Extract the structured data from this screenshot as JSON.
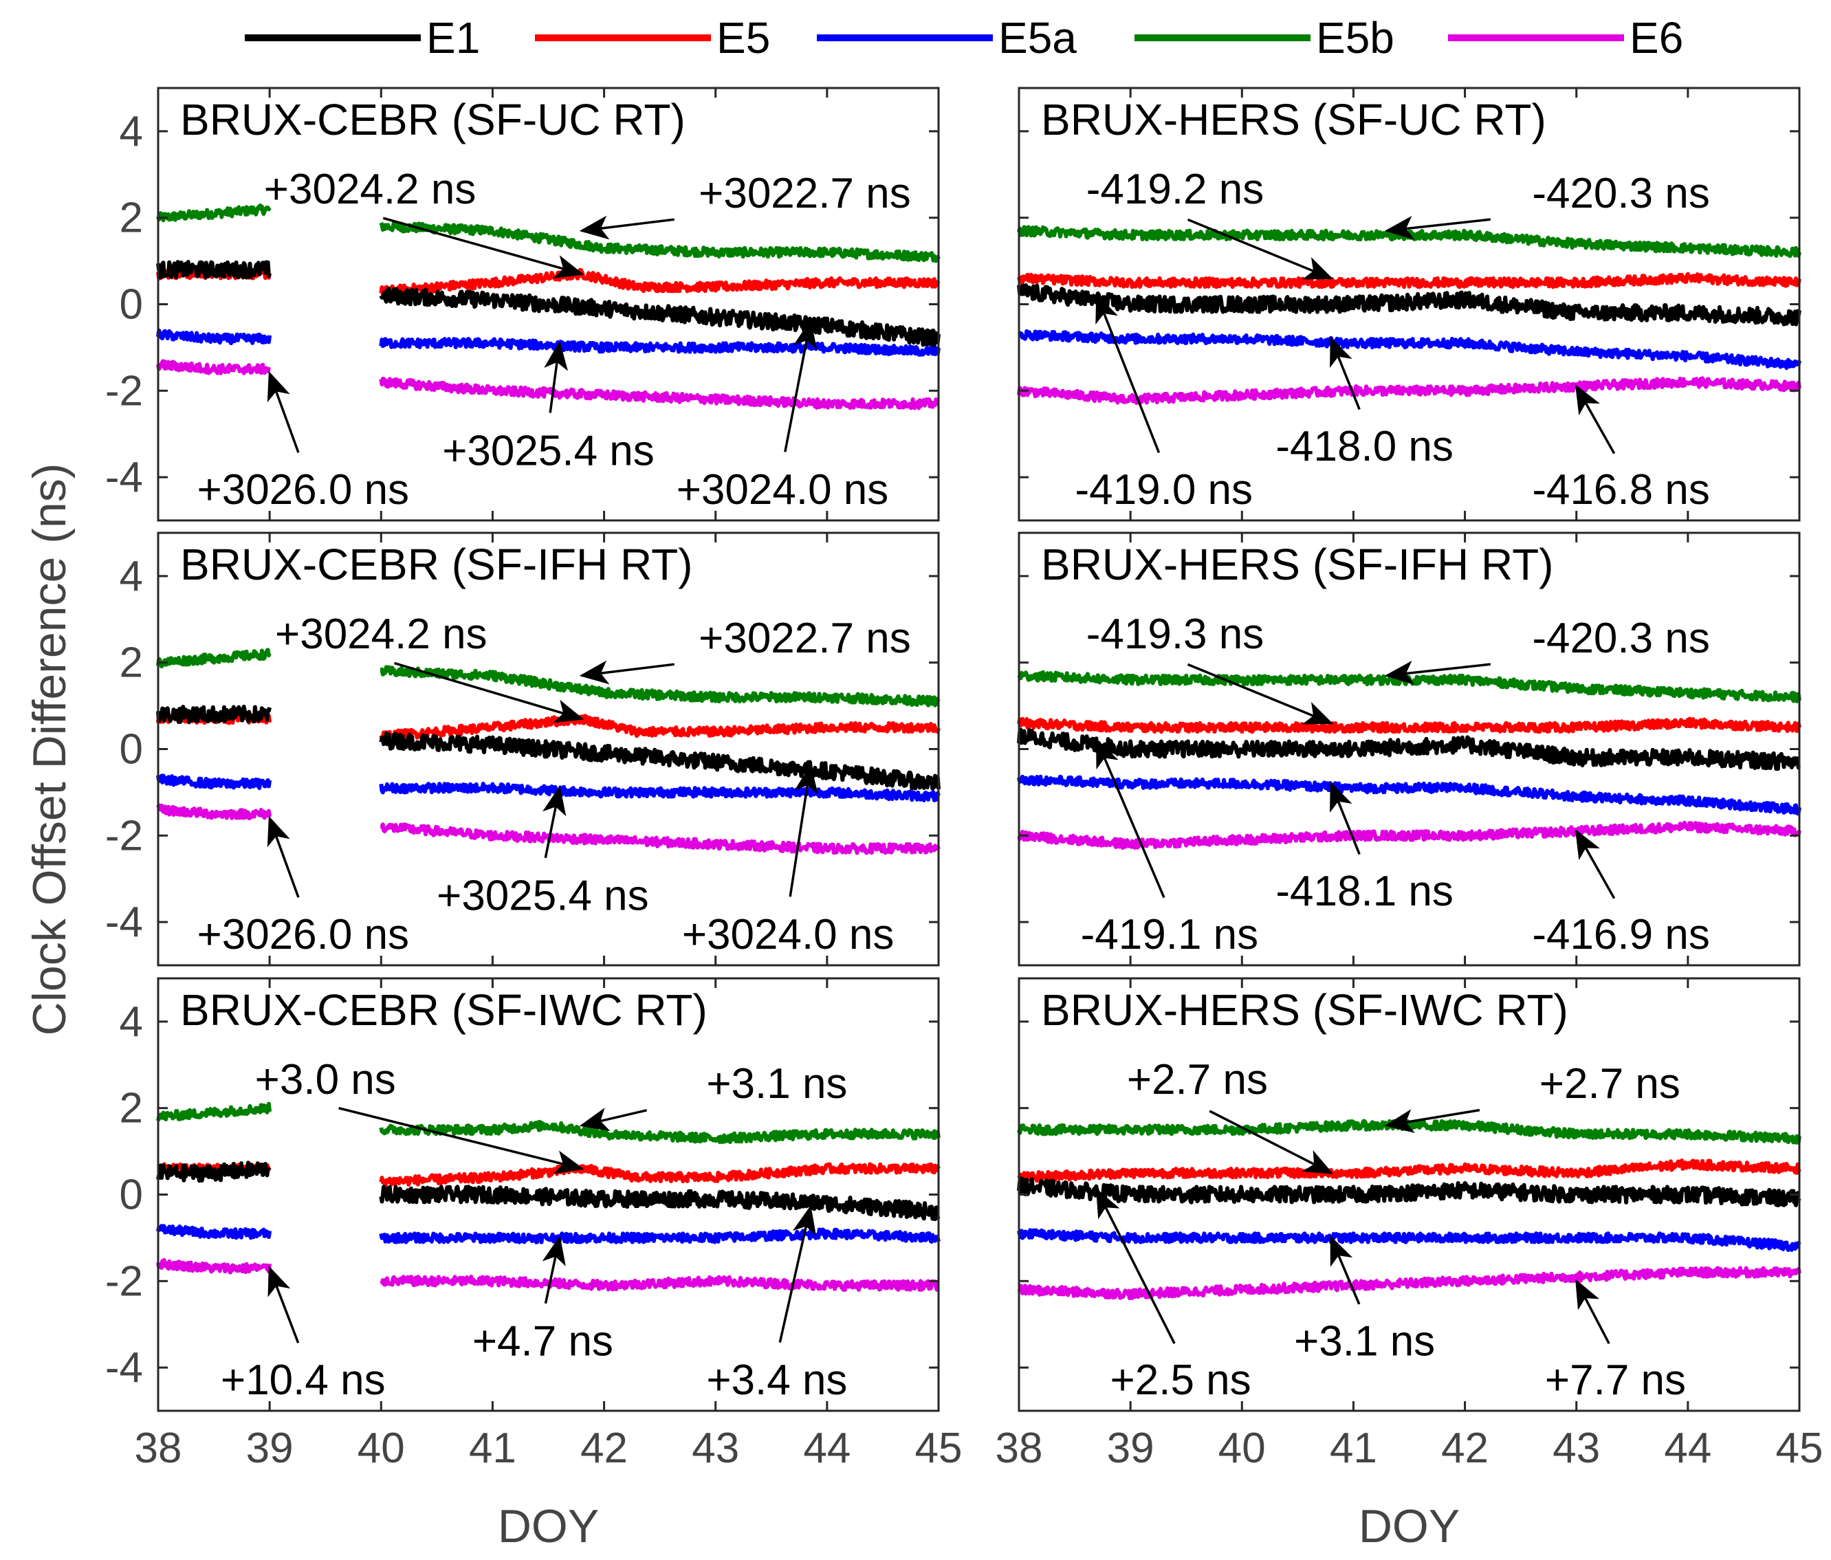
{
  "colors": {
    "E1": "#000000",
    "E5": "#ff0000",
    "E5a": "#0000ff",
    "E5b": "#008000",
    "E6": "#e000e0"
  },
  "legend": [
    "E1",
    "E5",
    "E5a",
    "E5b",
    "E6"
  ],
  "chart_data": {
    "type": "line",
    "ylabel": "Clock Offset Difference (ns)",
    "xlabel": "DOY",
    "xlim": [
      38,
      45
    ],
    "ylim": [
      -5,
      5
    ],
    "xticks": [
      "38",
      "39",
      "40",
      "41",
      "42",
      "43",
      "44",
      "45"
    ],
    "yticks": [
      "4",
      "2",
      "0",
      "-2",
      "-4"
    ],
    "panels": [
      {
        "title": "BRUX-CEBR (SF-UC RT)",
        "gap": [
          39,
          40
        ],
        "series": [
          {
            "name": "E5b",
            "values_x": [
              38,
              38.5,
              39,
              40,
              41,
              41.5,
              42,
              43,
              44,
              45
            ],
            "values_y": [
              2.0,
              2.1,
              2.2,
              1.8,
              1.7,
              1.5,
              1.3,
              1.2,
              1.2,
              1.1
            ]
          },
          {
            "name": "E5",
            "values_x": [
              38,
              38.5,
              39,
              40,
              41,
              41.8,
              42.3,
              43,
              44,
              45
            ],
            "values_y": [
              0.7,
              0.7,
              0.7,
              0.3,
              0.5,
              0.7,
              0.4,
              0.4,
              0.5,
              0.5
            ]
          },
          {
            "name": "E1",
            "values_x": [
              38,
              38.5,
              39,
              40,
              41,
              42,
              43,
              44,
              45
            ],
            "values_y": [
              0.8,
              0.8,
              0.8,
              0.2,
              0.1,
              -0.1,
              -0.3,
              -0.5,
              -0.8
            ]
          },
          {
            "name": "E5a",
            "values_x": [
              38,
              38.5,
              39,
              40,
              41,
              42,
              43,
              44,
              45
            ],
            "values_y": [
              -0.7,
              -0.8,
              -0.8,
              -0.9,
              -0.9,
              -1.0,
              -1.0,
              -1.0,
              -1.1
            ]
          },
          {
            "name": "E6",
            "values_x": [
              38,
              38.5,
              39,
              40,
              41,
              42,
              43,
              44,
              45
            ],
            "values_y": [
              -1.4,
              -1.5,
              -1.5,
              -1.8,
              -2.0,
              -2.1,
              -2.2,
              -2.3,
              -2.3
            ]
          }
        ],
        "annotations": [
          {
            "text": "+3024.2 ns",
            "x": 39.9,
            "y": 2.65,
            "tx": 41.8,
            "ty": 0.7
          },
          {
            "text": "+3022.7 ns",
            "x": 43.8,
            "y": 2.55,
            "tx": 41.8,
            "ty": 1.7
          },
          {
            "text": "+3025.4 ns",
            "x": 41.5,
            "y": -3.4,
            "tx": 41.6,
            "ty": -0.9
          },
          {
            "text": "+3024.0 ns",
            "x": 43.6,
            "y": -4.3,
            "tx": 43.85,
            "ty": -0.4
          },
          {
            "text": "+3026.0 ns",
            "x": 39.3,
            "y": -4.3,
            "tx": 39.0,
            "ty": -1.6
          }
        ]
      },
      {
        "title": "BRUX-HERS (SF-UC RT)",
        "gap": null,
        "series": [
          {
            "name": "E5b",
            "values_x": [
              38,
              39,
              40,
              41,
              42,
              43,
              44,
              45
            ],
            "values_y": [
              1.7,
              1.6,
              1.6,
              1.6,
              1.6,
              1.4,
              1.3,
              1.2
            ]
          },
          {
            "name": "E5",
            "values_x": [
              38,
              39,
              40,
              41,
              42,
              43,
              44,
              45
            ],
            "values_y": [
              0.6,
              0.5,
              0.5,
              0.5,
              0.5,
              0.5,
              0.6,
              0.5
            ]
          },
          {
            "name": "E1",
            "values_x": [
              38,
              39,
              40,
              41,
              42,
              43,
              44,
              45
            ],
            "values_y": [
              0.3,
              0.0,
              0.0,
              0.0,
              0.1,
              -0.2,
              -0.2,
              -0.3
            ]
          },
          {
            "name": "E5a",
            "values_x": [
              38,
              39,
              40,
              41,
              42,
              43,
              44,
              45
            ],
            "values_y": [
              -0.7,
              -0.8,
              -0.8,
              -0.9,
              -0.9,
              -1.1,
              -1.2,
              -1.4
            ]
          },
          {
            "name": "E6",
            "values_x": [
              38,
              39,
              40,
              41,
              42,
              43,
              44,
              45
            ],
            "values_y": [
              -2.0,
              -2.2,
              -2.1,
              -2.0,
              -2.0,
              -1.9,
              -1.8,
              -1.9
            ]
          }
        ],
        "annotations": [
          {
            "text": "-419.2 ns",
            "x": 39.4,
            "y": 2.65,
            "tx": 40.8,
            "ty": 0.6
          },
          {
            "text": "-420.3 ns",
            "x": 43.4,
            "y": 2.55,
            "tx": 41.3,
            "ty": 1.7
          },
          {
            "text": "-418.0 ns",
            "x": 41.1,
            "y": -3.3,
            "tx": 40.8,
            "ty": -0.8
          },
          {
            "text": "-416.8 ns",
            "x": 43.4,
            "y": -4.3,
            "tx": 43.0,
            "ty": -1.9
          },
          {
            "text": "-419.0 ns",
            "x": 39.3,
            "y": -4.3,
            "tx": 38.7,
            "ty": 0.2
          }
        ]
      },
      {
        "title": "BRUX-CEBR (SF-IFH RT)",
        "gap": [
          39,
          40
        ],
        "series": [
          {
            "name": "E5b",
            "values_x": [
              38,
              38.5,
              39,
              40,
              41,
              41.5,
              42,
              43,
              44,
              45
            ],
            "values_y": [
              2.0,
              2.1,
              2.2,
              1.8,
              1.7,
              1.5,
              1.3,
              1.2,
              1.2,
              1.1
            ]
          },
          {
            "name": "E5",
            "values_x": [
              38,
              38.5,
              39,
              40,
              41,
              41.8,
              42.3,
              43,
              44,
              45
            ],
            "values_y": [
              0.7,
              0.7,
              0.7,
              0.3,
              0.5,
              0.7,
              0.4,
              0.4,
              0.5,
              0.5
            ]
          },
          {
            "name": "E1",
            "values_x": [
              38,
              38.5,
              39,
              40,
              41,
              42,
              43,
              44,
              45
            ],
            "values_y": [
              0.8,
              0.8,
              0.8,
              0.2,
              0.1,
              -0.1,
              -0.3,
              -0.5,
              -0.8
            ]
          },
          {
            "name": "E5a",
            "values_x": [
              38,
              38.5,
              39,
              40,
              41,
              42,
              43,
              44,
              45
            ],
            "values_y": [
              -0.7,
              -0.8,
              -0.8,
              -0.9,
              -0.9,
              -1.0,
              -1.0,
              -1.0,
              -1.1
            ]
          },
          {
            "name": "E6",
            "values_x": [
              38,
              38.5,
              39,
              40,
              41,
              42,
              43,
              44,
              45
            ],
            "values_y": [
              -1.4,
              -1.5,
              -1.5,
              -1.8,
              -2.0,
              -2.1,
              -2.2,
              -2.3,
              -2.3
            ]
          }
        ],
        "annotations": [
          {
            "text": "+3024.2 ns",
            "x": 40.0,
            "y": 2.65,
            "tx": 41.8,
            "ty": 0.7
          },
          {
            "text": "+3022.7 ns",
            "x": 43.8,
            "y": 2.55,
            "tx": 41.8,
            "ty": 1.7
          },
          {
            "text": "+3025.4 ns",
            "x": 41.45,
            "y": -3.4,
            "tx": 41.6,
            "ty": -0.9
          },
          {
            "text": "+3024.0 ns",
            "x": 43.65,
            "y": -4.3,
            "tx": 43.85,
            "ty": -0.4
          },
          {
            "text": "+3026.0 ns",
            "x": 39.3,
            "y": -4.3,
            "tx": 39.0,
            "ty": -1.6
          }
        ]
      },
      {
        "title": "BRUX-HERS (SF-IFH RT)",
        "gap": null,
        "series": [
          {
            "name": "E5b",
            "values_x": [
              38,
              39,
              40,
              41,
              42,
              43,
              44,
              45
            ],
            "values_y": [
              1.7,
              1.6,
              1.6,
              1.6,
              1.6,
              1.4,
              1.3,
              1.2
            ]
          },
          {
            "name": "E5",
            "values_x": [
              38,
              39,
              40,
              41,
              42,
              43,
              44,
              45
            ],
            "values_y": [
              0.6,
              0.5,
              0.5,
              0.5,
              0.5,
              0.5,
              0.6,
              0.5
            ]
          },
          {
            "name": "E1",
            "values_x": [
              38,
              39,
              40,
              41,
              42,
              43,
              44,
              45
            ],
            "values_y": [
              0.3,
              0.0,
              0.0,
              0.0,
              0.1,
              -0.2,
              -0.2,
              -0.3
            ]
          },
          {
            "name": "E5a",
            "values_x": [
              38,
              39,
              40,
              41,
              42,
              43,
              44,
              45
            ],
            "values_y": [
              -0.7,
              -0.8,
              -0.8,
              -0.9,
              -0.9,
              -1.1,
              -1.2,
              -1.4
            ]
          },
          {
            "name": "E6",
            "values_x": [
              38,
              39,
              40,
              41,
              42,
              43,
              44,
              45
            ],
            "values_y": [
              -2.0,
              -2.2,
              -2.1,
              -2.0,
              -2.0,
              -1.9,
              -1.8,
              -1.9
            ]
          }
        ],
        "annotations": [
          {
            "text": "-419.3 ns",
            "x": 39.4,
            "y": 2.65,
            "tx": 40.8,
            "ty": 0.6
          },
          {
            "text": "-420.3 ns",
            "x": 43.4,
            "y": 2.55,
            "tx": 41.3,
            "ty": 1.7
          },
          {
            "text": "-418.1 ns",
            "x": 41.1,
            "y": -3.3,
            "tx": 40.8,
            "ty": -0.8
          },
          {
            "text": "-416.9 ns",
            "x": 43.4,
            "y": -4.3,
            "tx": 43.0,
            "ty": -1.9
          },
          {
            "text": "-419.1 ns",
            "x": 39.35,
            "y": -4.3,
            "tx": 38.7,
            "ty": 0.2
          }
        ]
      },
      {
        "title": "BRUX-CEBR (SF-IWC RT)",
        "gap": [
          39,
          40
        ],
        "series": [
          {
            "name": "E5b",
            "values_x": [
              38,
              38.5,
              39,
              40,
              41,
              41.5,
              42,
              43,
              44,
              45
            ],
            "values_y": [
              1.8,
              1.9,
              2.0,
              1.5,
              1.5,
              1.6,
              1.4,
              1.3,
              1.4,
              1.4
            ]
          },
          {
            "name": "E5",
            "values_x": [
              38,
              38.5,
              39,
              40,
              41,
              41.8,
              42.3,
              43,
              44,
              45
            ],
            "values_y": [
              0.6,
              0.6,
              0.6,
              0.3,
              0.4,
              0.6,
              0.4,
              0.4,
              0.6,
              0.6
            ]
          },
          {
            "name": "E1",
            "values_x": [
              38,
              38.5,
              39,
              40,
              41,
              42,
              43,
              44,
              45
            ],
            "values_y": [
              0.5,
              0.5,
              0.6,
              0.0,
              0.0,
              -0.1,
              -0.1,
              -0.2,
              -0.4
            ]
          },
          {
            "name": "E5a",
            "values_x": [
              38,
              38.5,
              39,
              40,
              41,
              42,
              43,
              44,
              45
            ],
            "values_y": [
              -0.8,
              -0.9,
              -0.9,
              -1.0,
              -1.0,
              -1.0,
              -1.0,
              -0.9,
              -1.0
            ]
          },
          {
            "name": "E6",
            "values_x": [
              38,
              38.5,
              39,
              40,
              41,
              42,
              43,
              44,
              45
            ],
            "values_y": [
              -1.6,
              -1.7,
              -1.7,
              -2.0,
              -2.0,
              -2.1,
              -2.0,
              -2.1,
              -2.1
            ]
          }
        ],
        "annotations": [
          {
            "text": "+3.0 ns",
            "x": 39.5,
            "y": 2.65,
            "tx": 41.8,
            "ty": 0.6
          },
          {
            "text": "+3.1 ns",
            "x": 43.55,
            "y": 2.55,
            "tx": 41.8,
            "ty": 1.6
          },
          {
            "text": "+4.7 ns",
            "x": 41.45,
            "y": -3.4,
            "tx": 41.6,
            "ty": -1.0
          },
          {
            "text": "+3.4 ns",
            "x": 43.55,
            "y": -4.3,
            "tx": 43.85,
            "ty": -0.3
          },
          {
            "text": "+10.4 ns",
            "x": 39.3,
            "y": -4.3,
            "tx": 39.0,
            "ty": -1.7
          }
        ]
      },
      {
        "title": "BRUX-HERS (SF-IWC RT)",
        "gap": null,
        "series": [
          {
            "name": "E5b",
            "values_x": [
              38,
              39,
              40,
              41,
              42,
              43,
              44,
              45
            ],
            "values_y": [
              1.5,
              1.5,
              1.5,
              1.6,
              1.6,
              1.4,
              1.4,
              1.3
            ]
          },
          {
            "name": "E5",
            "values_x": [
              38,
              39,
              40,
              41,
              42,
              43,
              44,
              45
            ],
            "values_y": [
              0.4,
              0.5,
              0.5,
              0.5,
              0.6,
              0.5,
              0.7,
              0.6
            ]
          },
          {
            "name": "E1",
            "values_x": [
              38,
              39,
              40,
              41,
              42,
              43,
              44,
              45
            ],
            "values_y": [
              0.2,
              0.0,
              0.0,
              0.0,
              0.1,
              0.0,
              0.0,
              -0.1
            ]
          },
          {
            "name": "E5a",
            "values_x": [
              38,
              39,
              40,
              41,
              42,
              43,
              44,
              45
            ],
            "values_y": [
              -0.9,
              -1.0,
              -1.0,
              -1.0,
              -1.0,
              -1.0,
              -1.0,
              -1.2
            ]
          },
          {
            "name": "E6",
            "values_x": [
              38,
              39,
              40,
              41,
              42,
              43,
              44,
              45
            ],
            "values_y": [
              -2.2,
              -2.3,
              -2.2,
              -2.1,
              -2.0,
              -1.9,
              -1.8,
              -1.8
            ]
          }
        ],
        "annotations": [
          {
            "text": "+2.7 ns",
            "x": 39.6,
            "y": 2.65,
            "tx": 40.8,
            "ty": 0.5
          },
          {
            "text": "+2.7 ns",
            "x": 43.3,
            "y": 2.55,
            "tx": 41.3,
            "ty": 1.6
          },
          {
            "text": "+3.1 ns",
            "x": 41.1,
            "y": -3.4,
            "tx": 40.8,
            "ty": -1.0
          },
          {
            "text": "+7.7 ns",
            "x": 43.35,
            "y": -4.3,
            "tx": 43.0,
            "ty": -2.0
          },
          {
            "text": "+2.5 ns",
            "x": 39.45,
            "y": -4.3,
            "tx": 38.7,
            "ty": 0.1
          }
        ]
      }
    ]
  }
}
